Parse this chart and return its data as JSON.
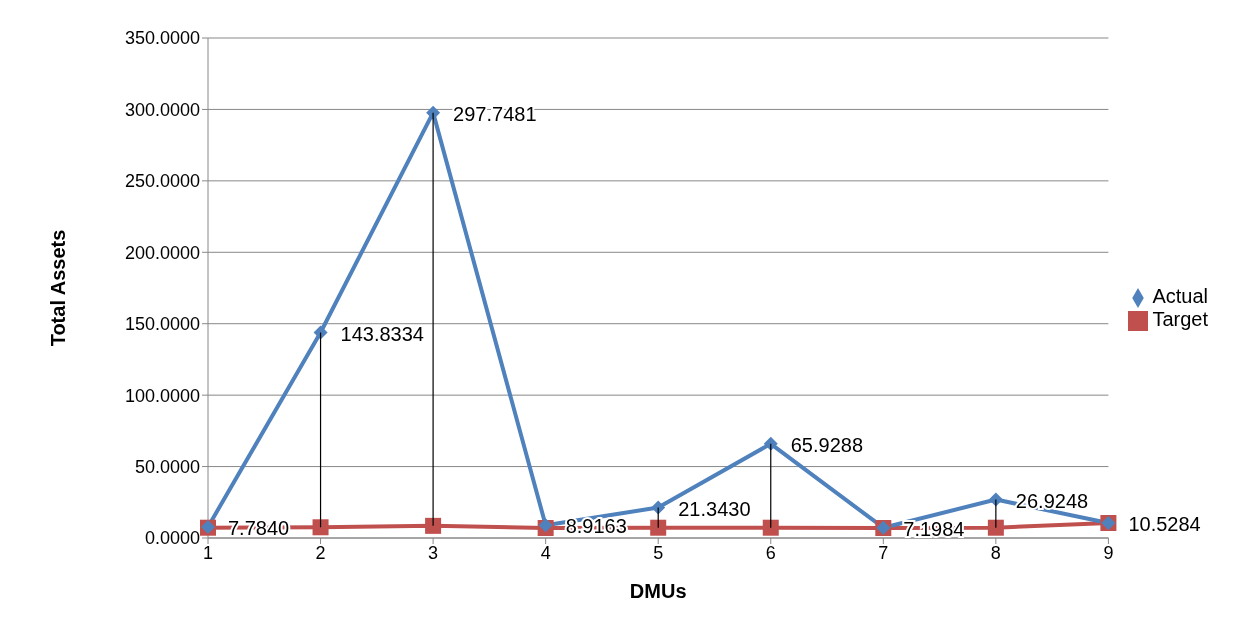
{
  "chart_data": {
    "type": "line",
    "xlabel": "DMUs",
    "ylabel": "Total Assets",
    "categories": [
      "1",
      "2",
      "3",
      "4",
      "5",
      "6",
      "7",
      "8",
      "9"
    ],
    "series": [
      {
        "name": "Actual",
        "color": "#4f81bd",
        "marker": "diamond",
        "values": [
          7.784,
          143.8334,
          297.7481,
          8.9163,
          21.343,
          65.9288,
          7.1984,
          26.9248,
          10.5284
        ],
        "errors": [
          null,
          [
            7.5,
            143.8334
          ],
          [
            8.5,
            297.7481
          ],
          null,
          [
            7.2,
            21.343
          ],
          [
            7.2,
            65.9288
          ],
          null,
          [
            7.2,
            26.9248
          ],
          null
        ],
        "value_labels": [
          "7.7840",
          "143.8334",
          "297.7481",
          "8.9163",
          "21.3430",
          "65.9288",
          "7.1984",
          "26.9248",
          "10.5284"
        ]
      },
      {
        "name": "Target",
        "color": "#c0504d",
        "marker": "square",
        "values": [
          7.2,
          7.5,
          8.5,
          7.0,
          7.2,
          7.2,
          7.0,
          7.2,
          10.5
        ]
      }
    ],
    "ylim": [
      0,
      350
    ],
    "yticks": [
      {
        "value": 0,
        "label": "0.0000"
      },
      {
        "value": 50,
        "label": "50.0000"
      },
      {
        "value": 100,
        "label": "100.0000"
      },
      {
        "value": 150,
        "label": "150.0000"
      },
      {
        "value": 200,
        "label": "200.0000"
      },
      {
        "value": 250,
        "label": "250.0000"
      },
      {
        "value": 300,
        "label": "300.0000"
      },
      {
        "value": 350,
        "label": "350.0000"
      }
    ],
    "grid": "y",
    "legend": "right"
  }
}
